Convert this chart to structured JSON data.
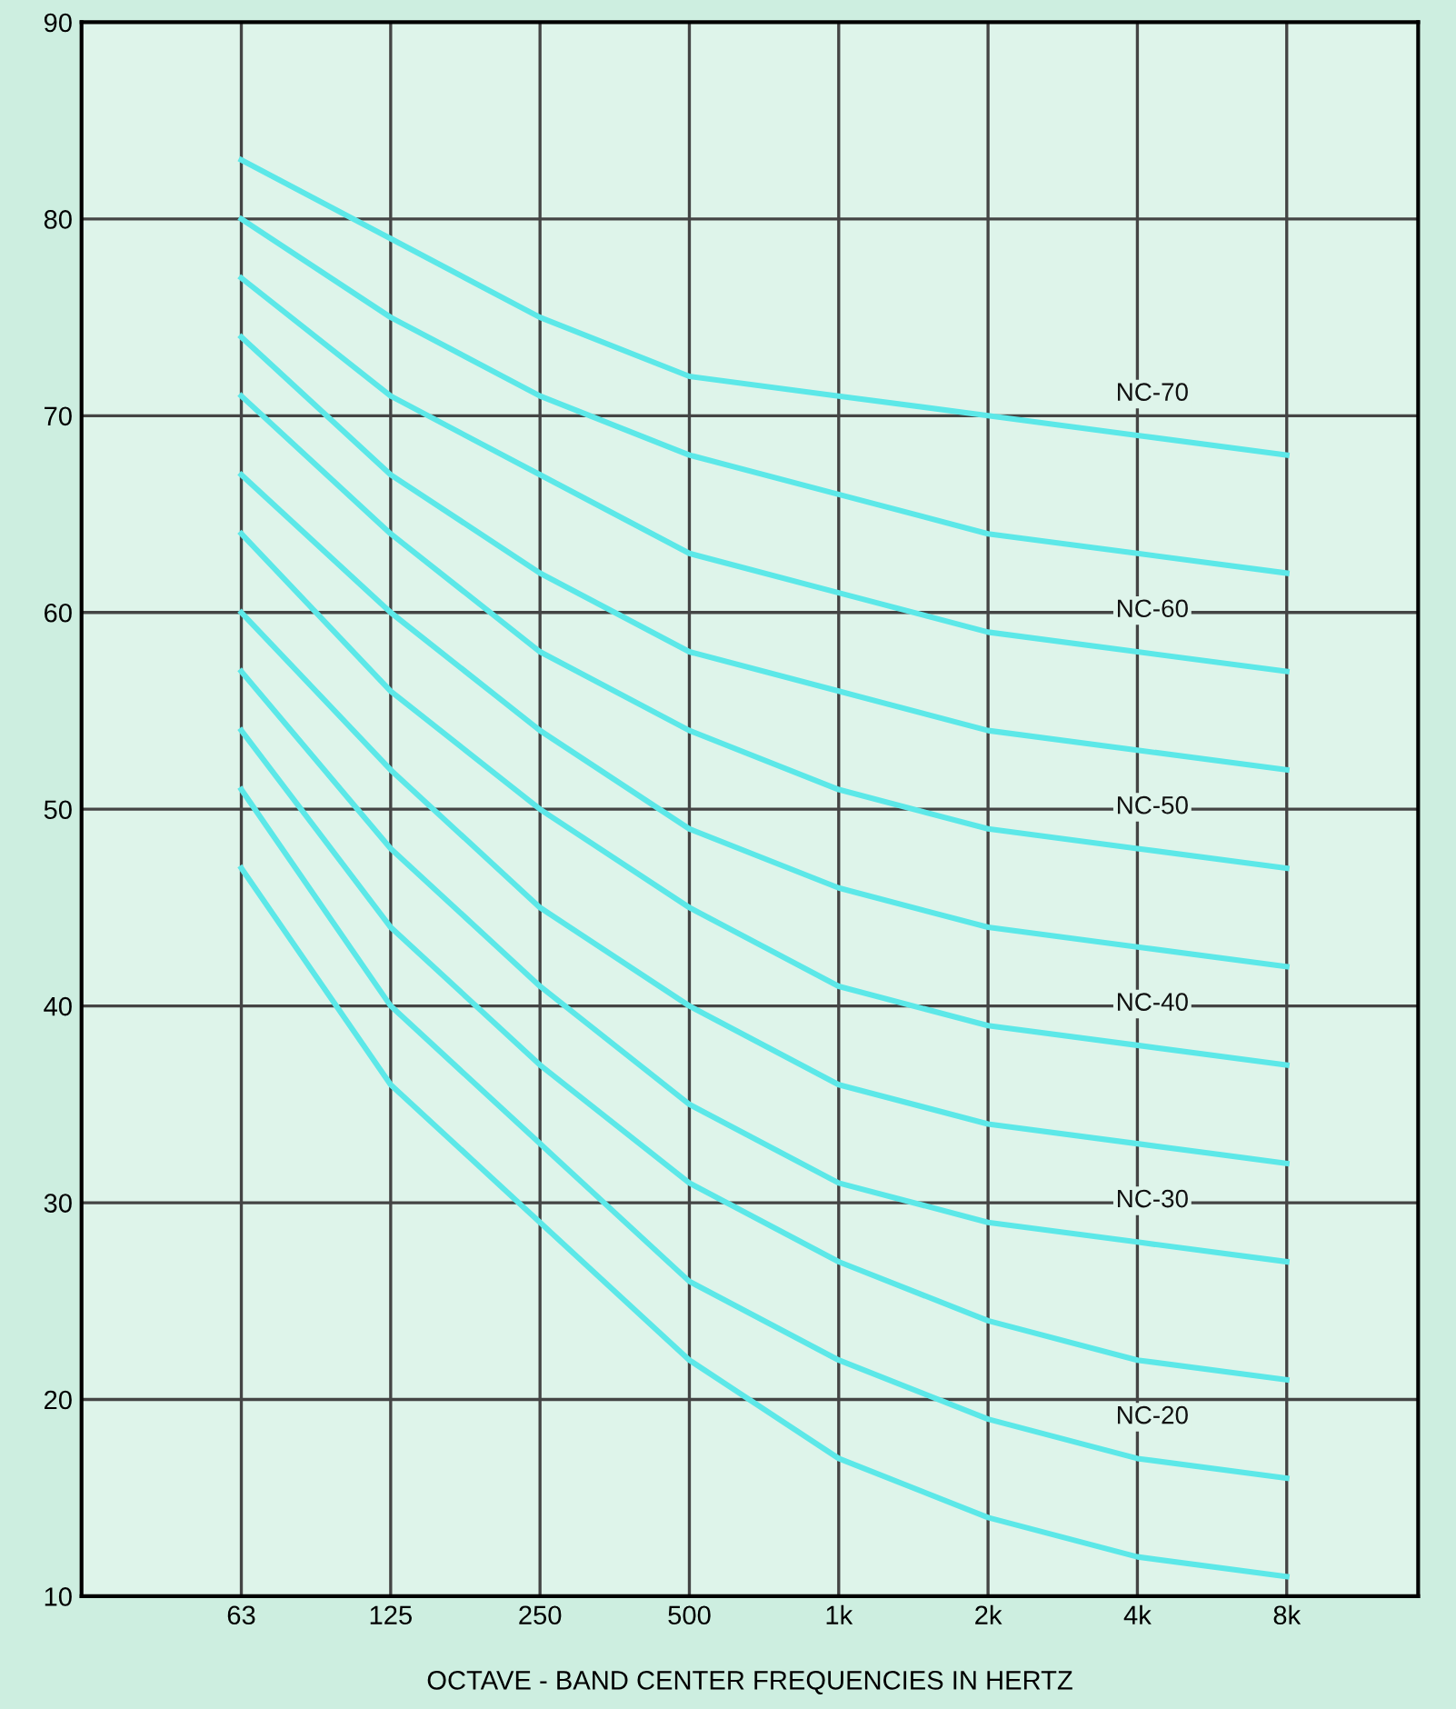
{
  "chart_data": {
    "type": "line",
    "xlabel": "OCTAVE - BAND CENTER FREQUENCIES IN HERTZ",
    "categories": [
      "63",
      "125",
      "250",
      "500",
      "1k",
      "2k",
      "4k",
      "8k"
    ],
    "ylim": [
      10,
      90
    ],
    "yticks": [
      10,
      20,
      30,
      40,
      50,
      60,
      70,
      80,
      90
    ],
    "grid": true,
    "marker": "none",
    "line_style": "solid",
    "series": [
      {
        "name": "NC-70",
        "color": "#5ce8e8",
        "values": [
          83,
          79,
          75,
          72,
          71,
          70,
          69,
          68
        ]
      },
      {
        "color": "#5ce8e8",
        "values": [
          80,
          75,
          71,
          68,
          66,
          64,
          63,
          62
        ]
      },
      {
        "name": "NC-60",
        "color": "#5ce8e8",
        "values": [
          77,
          71,
          67,
          63,
          61,
          59,
          58,
          57
        ]
      },
      {
        "color": "#5ce8e8",
        "values": [
          74,
          67,
          62,
          58,
          56,
          54,
          53,
          52
        ]
      },
      {
        "name": "NC-50",
        "color": "#5ce8e8",
        "values": [
          71,
          64,
          58,
          54,
          51,
          49,
          48,
          47
        ]
      },
      {
        "color": "#5ce8e8",
        "values": [
          67,
          60,
          54,
          49,
          46,
          44,
          43,
          42
        ]
      },
      {
        "name": "NC-40",
        "color": "#5ce8e8",
        "values": [
          64,
          56,
          50,
          45,
          41,
          39,
          38,
          37
        ]
      },
      {
        "color": "#5ce8e8",
        "values": [
          60,
          52,
          45,
          40,
          36,
          34,
          33,
          32
        ]
      },
      {
        "name": "NC-30",
        "color": "#5ce8e8",
        "values": [
          57,
          48,
          41,
          35,
          31,
          29,
          28,
          27
        ]
      },
      {
        "color": "#5ce8e8",
        "values": [
          54,
          44,
          37,
          31,
          27,
          24,
          22,
          21
        ]
      },
      {
        "name": "NC-20",
        "color": "#5ce8e8",
        "values": [
          51,
          40,
          33,
          26,
          22,
          19,
          17,
          16
        ]
      },
      {
        "color": "#5ce8e8",
        "values": [
          47,
          36,
          29,
          22,
          17,
          14,
          12,
          11
        ]
      }
    ]
  }
}
